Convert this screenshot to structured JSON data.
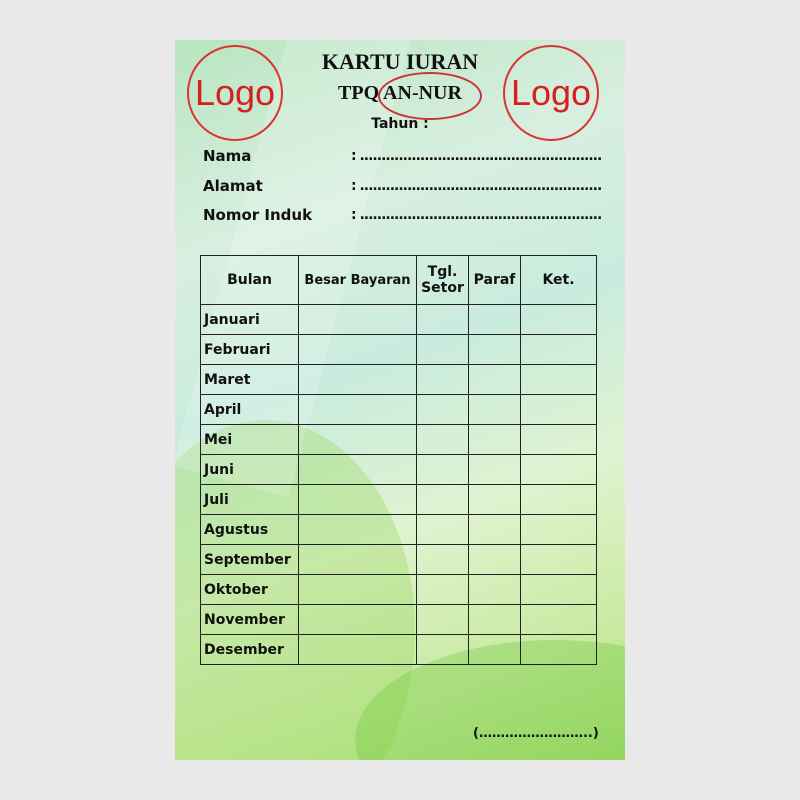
{
  "header": {
    "logo_left": "Logo",
    "logo_right": "Logo",
    "title": "KARTU IURAN",
    "subtitle": "TPQ AN-NUR",
    "year_label": "Tahun  :"
  },
  "fields": [
    {
      "label": "Nama",
      "value": ": ........................................................"
    },
    {
      "label": "Alamat",
      "value": ": ........................................................"
    },
    {
      "label": "Nomor Induk",
      "value": ": ........................................................"
    }
  ],
  "table": {
    "headers": [
      "Bulan",
      "Besar Bayaran",
      "Tgl. Setor",
      "Paraf",
      "Ket."
    ],
    "months": [
      "Januari",
      "Februari",
      "Maret",
      "April",
      "Mei",
      "Juni",
      "Juli",
      "Agustus",
      "September",
      "Oktober",
      "November",
      "Desember"
    ]
  },
  "signature": "(……………………..)",
  "colors": {
    "logo_red": "#d42020"
  }
}
